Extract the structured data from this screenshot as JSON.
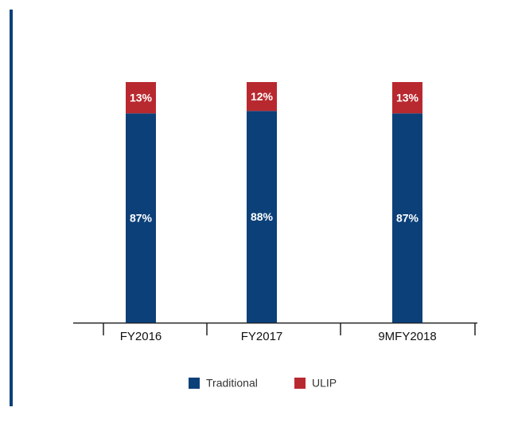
{
  "chart_data": {
    "type": "stacked-bar",
    "categories": [
      "FY2016",
      "FY2017",
      "9MFY2018"
    ],
    "series": [
      {
        "name": "Traditional",
        "color": "#0c4079",
        "values": [
          87,
          88,
          87
        ],
        "value_labels": [
          "87%",
          "88%",
          "87%"
        ]
      },
      {
        "name": "ULIP",
        "color": "#b8292f",
        "values": [
          13,
          12,
          13
        ],
        "value_labels": [
          "13%",
          "12%",
          "13%"
        ]
      }
    ],
    "ylim": [
      0,
      100
    ]
  }
}
